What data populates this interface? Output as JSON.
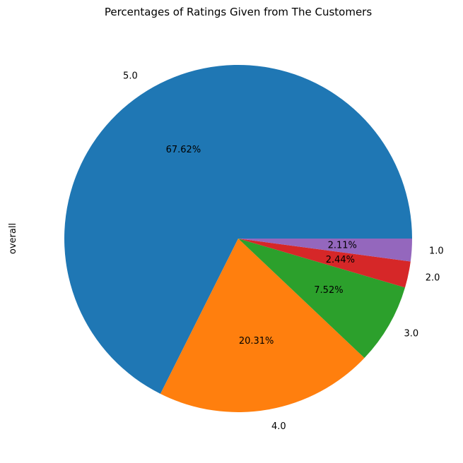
{
  "chart_data": {
    "type": "pie",
    "title": "Percentages of Ratings Given from The Customers",
    "ylabel": "overall",
    "categories": [
      "5.0",
      "4.0",
      "3.0",
      "2.0",
      "1.0"
    ],
    "values": [
      67.62,
      20.31,
      7.52,
      2.44,
      2.11
    ],
    "value_labels": [
      "67.62%",
      "20.31%",
      "7.52%",
      "2.44%",
      "2.11%"
    ],
    "colors": [
      "#1f77b4",
      "#ff7f0e",
      "#2ca02c",
      "#d62728",
      "#9467bd"
    ],
    "start_angle_deg": 0,
    "direction": "counterclockwise",
    "legend": "none"
  }
}
